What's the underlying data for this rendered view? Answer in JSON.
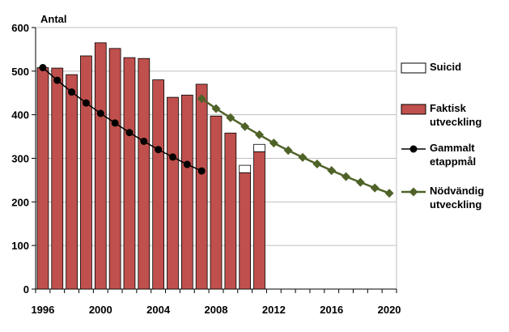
{
  "chart_data": {
    "type": "bar",
    "ylabel": "Antal",
    "ylim": [
      0,
      600
    ],
    "yticks": [
      0,
      100,
      200,
      300,
      400,
      500,
      600
    ],
    "xlim": [
      1996,
      2020
    ],
    "xticks": [
      1996,
      2000,
      2004,
      2008,
      2012,
      2016,
      2020
    ],
    "grid": "horizontal",
    "legend_position": "right",
    "colors": {
      "bar": "#c0504d",
      "suicid": "#ffffff",
      "old_line": "#000000",
      "new_line": "#4f6228",
      "new_marker": "#4f6228",
      "grid": "#bfbfbf"
    },
    "series": [
      {
        "name": "Faktisk utveckling",
        "kind": "bar",
        "x": [
          1996,
          1997,
          1998,
          1999,
          2000,
          2001,
          2002,
          2003,
          2004,
          2005,
          2006,
          2007,
          2008,
          2009,
          2010,
          2011
        ],
        "values": [
          508,
          507,
          492,
          535,
          565,
          552,
          531,
          529,
          480,
          440,
          445,
          470,
          397,
          358,
          267,
          315
        ]
      },
      {
        "name": "Suicid",
        "kind": "bar-stacked",
        "x": [
          2010,
          2011
        ],
        "values": [
          17,
          17
        ]
      },
      {
        "name": "Gammalt etappmål",
        "kind": "line",
        "marker": "circle",
        "x": [
          1996,
          1997,
          1998,
          1999,
          2000,
          2001,
          2002,
          2003,
          2004,
          2005,
          2006,
          2007
        ],
        "values": [
          508,
          479,
          452,
          427,
          403,
          381,
          359,
          339,
          320,
          303,
          286,
          271
        ]
      },
      {
        "name": "Nödvändig utveckling",
        "kind": "line",
        "marker": "diamond",
        "x": [
          2007,
          2008,
          2009,
          2010,
          2011,
          2012,
          2013,
          2014,
          2015,
          2016,
          2017,
          2018,
          2019,
          2020
        ],
        "values": [
          437,
          414,
          393,
          373,
          354,
          335,
          318,
          302,
          287,
          272,
          258,
          245,
          232,
          220
        ]
      }
    ],
    "legend": [
      {
        "series": "Suicid",
        "lines": [
          "Suicid"
        ],
        "swatch": "box-white"
      },
      {
        "series": "Faktisk utveckling",
        "lines": [
          "Faktisk",
          "utveckling"
        ],
        "swatch": "box-red"
      },
      {
        "series": "Gammalt etappmål",
        "lines": [
          "Gammalt",
          "etappmål"
        ],
        "swatch": "line-circle"
      },
      {
        "series": "Nödvändig utveckling",
        "lines": [
          "Nödvändig",
          "utveckling"
        ],
        "swatch": "line-diamond"
      }
    ]
  }
}
